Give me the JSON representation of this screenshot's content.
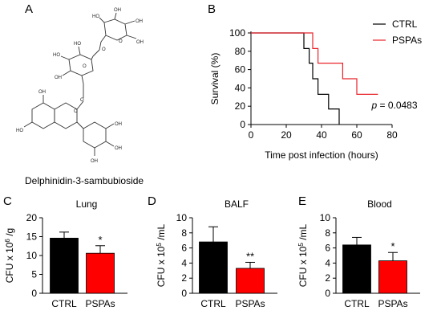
{
  "panels": {
    "A": {
      "letter": "A",
      "caption": "Delphinidin-3-sambubioside"
    },
    "B": {
      "letter": "B"
    },
    "C": {
      "letter": "C"
    },
    "D": {
      "letter": "D"
    },
    "E": {
      "letter": "E"
    }
  },
  "colors": {
    "ctrl": "#000000",
    "pspas": "#e8232a"
  },
  "chart_data": [
    {
      "id": "B",
      "type": "line",
      "subtype": "kaplan-meier step",
      "xlabel": "Time post infection (hours)",
      "ylabel": "Survival (%)",
      "xlim": [
        0,
        80
      ],
      "ylim": [
        0,
        100
      ],
      "xticks": [
        0,
        20,
        40,
        60,
        80
      ],
      "yticks": [
        0,
        20,
        40,
        60,
        80,
        100
      ],
      "legend": {
        "placement": "top-right",
        "entries": [
          "CTRL",
          "PSPAs"
        ]
      },
      "annotation": {
        "prefix": "p",
        "text": " = 0.0483"
      },
      "series": [
        {
          "name": "CTRL",
          "color": "#000000",
          "x": [
            0,
            28,
            30,
            33,
            35,
            38,
            44,
            50
          ],
          "y": [
            100,
            100,
            83,
            67,
            50,
            33,
            17,
            0
          ]
        },
        {
          "name": "PSPAs",
          "color": "#e8232a",
          "x": [
            0,
            30,
            35,
            38,
            45,
            52,
            60,
            72
          ],
          "y": [
            100,
            100,
            83,
            67,
            67,
            50,
            33,
            33
          ]
        }
      ]
    },
    {
      "id": "C",
      "type": "bar",
      "title": "Lung",
      "ylabel_main": "CFU x 10",
      "ylabel_exp": "6",
      "ylabel_unit": " /g",
      "categories": [
        "CTRL",
        "PSPAs"
      ],
      "values": [
        14.6,
        10.6
      ],
      "errors": [
        1.6,
        2.0
      ],
      "colors": [
        "#000000",
        "#ff0000"
      ],
      "ylim": [
        0,
        20
      ],
      "yticks": [
        0,
        5,
        10,
        15,
        20
      ],
      "significance": [
        "",
        "*"
      ]
    },
    {
      "id": "D",
      "type": "bar",
      "title": "BALF",
      "ylabel_main": "CFU x 10",
      "ylabel_exp": "5",
      "ylabel_unit": " /mL",
      "categories": [
        "CTRL",
        "PSPAs"
      ],
      "values": [
        6.8,
        3.3
      ],
      "errors": [
        2.0,
        0.8
      ],
      "colors": [
        "#000000",
        "#ff0000"
      ],
      "ylim": [
        0,
        10
      ],
      "yticks": [
        0,
        2,
        4,
        6,
        8,
        10
      ],
      "significance": [
        "",
        "**"
      ]
    },
    {
      "id": "E",
      "type": "bar",
      "title": "Blood",
      "ylabel_main": "CFU x 10",
      "ylabel_exp": "5",
      "ylabel_unit": " /mL",
      "categories": [
        "CTRL",
        "PSPAs"
      ],
      "values": [
        6.4,
        4.3
      ],
      "errors": [
        1.0,
        1.1
      ],
      "colors": [
        "#000000",
        "#ff0000"
      ],
      "ylim": [
        0,
        10
      ],
      "yticks": [
        0,
        2,
        4,
        6,
        8,
        10
      ],
      "significance": [
        "",
        "*"
      ]
    }
  ]
}
